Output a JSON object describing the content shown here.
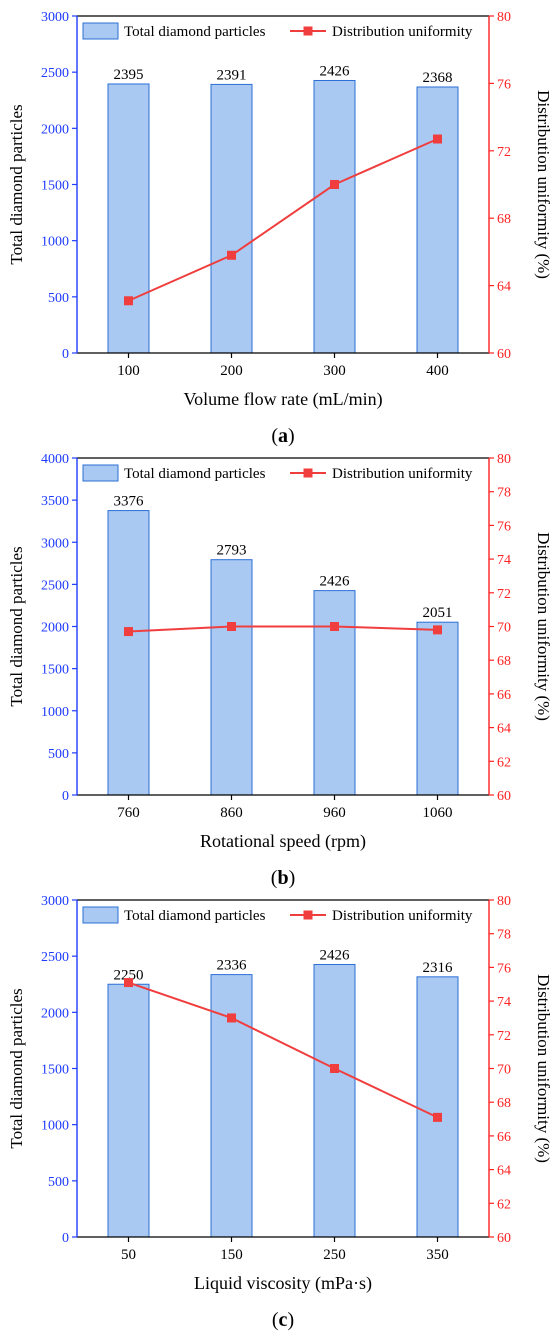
{
  "colors": {
    "bar_fill": "#a9c9f3",
    "bar_stroke": "#2c6fd6",
    "line": "#f03e3e",
    "left_axis": "#1f3cff",
    "right_axis": "#ff2222",
    "text": "#000000"
  },
  "chart_data": [
    {
      "type": "bar+line",
      "panel_label": "a",
      "xlabel": "Volume flow rate (mL/min)",
      "ylabel_left": "Total diamond particles",
      "ylabel_right": "Distribution uniformity (%)",
      "categories": [
        "100",
        "200",
        "300",
        "400"
      ],
      "ylim_left": [
        0,
        3000
      ],
      "yticks_left": [
        "0",
        "500",
        "1000",
        "1500",
        "2000",
        "2500",
        "3000"
      ],
      "ylim_right": [
        60,
        80
      ],
      "yticks_right": [
        "60",
        "64",
        "68",
        "72",
        "76",
        "80"
      ],
      "legend": {
        "position": "top",
        "bar_label": "Total diamond particles",
        "line_label": "Distribution uniformity"
      },
      "series": [
        {
          "name": "Total diamond particles",
          "kind": "bar",
          "axis": "left",
          "values": [
            2395,
            2391,
            2426,
            2368
          ],
          "labels": [
            "2395",
            "2391",
            "2426",
            "2368"
          ]
        },
        {
          "name": "Distribution uniformity",
          "kind": "line",
          "axis": "right",
          "values": [
            63.1,
            65.8,
            70.0,
            72.7
          ]
        }
      ]
    },
    {
      "type": "bar+line",
      "panel_label": "b",
      "xlabel": "Rotational speed (rpm)",
      "ylabel_left": "Total diamond particles",
      "ylabel_right": "Distribution uniformity (%)",
      "categories": [
        "760",
        "860",
        "960",
        "1060"
      ],
      "ylim_left": [
        0,
        4000
      ],
      "yticks_left": [
        "0",
        "500",
        "1000",
        "1500",
        "2000",
        "2500",
        "3000",
        "3500",
        "4000"
      ],
      "ylim_right": [
        60,
        80
      ],
      "yticks_right": [
        "60",
        "62",
        "64",
        "66",
        "68",
        "70",
        "72",
        "74",
        "76",
        "78",
        "80"
      ],
      "legend": {
        "position": "top",
        "bar_label": "Total diamond particles",
        "line_label": "Distribution uniformity"
      },
      "series": [
        {
          "name": "Total diamond particles",
          "kind": "bar",
          "axis": "left",
          "values": [
            3376,
            2793,
            2426,
            2051
          ],
          "labels": [
            "3376",
            "2793",
            "2426",
            "2051"
          ]
        },
        {
          "name": "Distribution uniformity",
          "kind": "line",
          "axis": "right",
          "values": [
            69.7,
            70.0,
            70.0,
            69.8
          ]
        }
      ]
    },
    {
      "type": "bar+line",
      "panel_label": "c",
      "xlabel": "Liquid viscosity (mPa·s)",
      "ylabel_left": "Total diamond particles",
      "ylabel_right": "Distribution uniformity (%)",
      "categories": [
        "50",
        "150",
        "250",
        "350"
      ],
      "ylim_left": [
        0,
        3000
      ],
      "yticks_left": [
        "0",
        "500",
        "1000",
        "1500",
        "2000",
        "2500",
        "3000"
      ],
      "ylim_right": [
        60,
        80
      ],
      "yticks_right": [
        "60",
        "62",
        "64",
        "66",
        "68",
        "70",
        "72",
        "74",
        "76",
        "78",
        "80"
      ],
      "legend": {
        "position": "top",
        "bar_label": "Total diamond particles",
        "line_label": "Distribution uniformity"
      },
      "series": [
        {
          "name": "Total diamond particles",
          "kind": "bar",
          "axis": "left",
          "values": [
            2250,
            2336,
            2426,
            2316
          ],
          "labels": [
            "2250",
            "2336",
            "2426",
            "2316"
          ]
        },
        {
          "name": "Distribution uniformity",
          "kind": "line",
          "axis": "right",
          "values": [
            75.1,
            73.0,
            70.0,
            67.1
          ]
        }
      ]
    }
  ]
}
